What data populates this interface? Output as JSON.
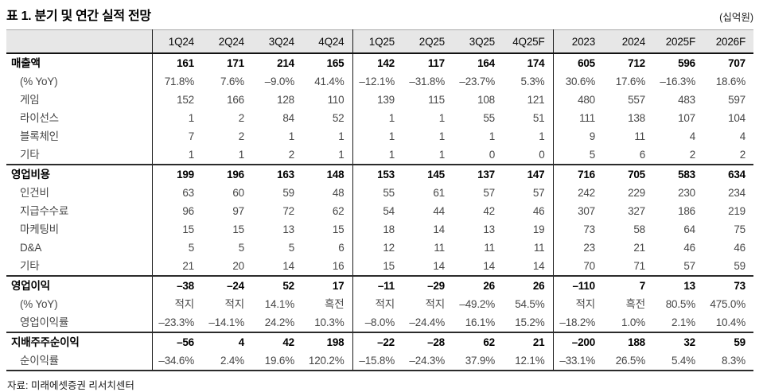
{
  "title": "표 1. 분기 및 연간 실적 전망",
  "unit_label": "(십억원)",
  "source": "자료: 미래에셋증권 리서치센터",
  "table": {
    "columns": [
      "1Q24",
      "2Q24",
      "3Q24",
      "4Q24",
      "1Q25",
      "2Q25",
      "3Q25",
      "4Q25F",
      "2023",
      "2024",
      "2025F",
      "2026F"
    ],
    "rows": [
      {
        "label": "매출액",
        "bold": true,
        "section": false,
        "values": [
          "161",
          "171",
          "214",
          "165",
          "142",
          "117",
          "164",
          "174",
          "605",
          "712",
          "596",
          "707"
        ]
      },
      {
        "label": "(% YoY)",
        "bold": false,
        "section": false,
        "values": [
          "71.8%",
          "7.6%",
          "–9.0%",
          "41.4%",
          "–12.1%",
          "–31.8%",
          "–23.7%",
          "5.3%",
          "30.6%",
          "17.6%",
          "–16.3%",
          "18.6%"
        ]
      },
      {
        "label": "게임",
        "bold": false,
        "section": false,
        "values": [
          "152",
          "166",
          "128",
          "110",
          "139",
          "115",
          "108",
          "121",
          "480",
          "557",
          "483",
          "597"
        ]
      },
      {
        "label": "라이선스",
        "bold": false,
        "section": false,
        "values": [
          "1",
          "2",
          "84",
          "52",
          "1",
          "1",
          "55",
          "51",
          "111",
          "138",
          "107",
          "104"
        ]
      },
      {
        "label": "블록체인",
        "bold": false,
        "section": false,
        "values": [
          "7",
          "2",
          "1",
          "1",
          "1",
          "1",
          "1",
          "1",
          "9",
          "11",
          "4",
          "4"
        ]
      },
      {
        "label": "기타",
        "bold": false,
        "section": false,
        "values": [
          "1",
          "1",
          "2",
          "1",
          "1",
          "1",
          "0",
          "0",
          "5",
          "6",
          "2",
          "2"
        ]
      },
      {
        "label": "영업비용",
        "bold": true,
        "section": true,
        "values": [
          "199",
          "196",
          "163",
          "148",
          "153",
          "145",
          "137",
          "147",
          "716",
          "705",
          "583",
          "634"
        ]
      },
      {
        "label": "인건비",
        "bold": false,
        "section": false,
        "values": [
          "63",
          "60",
          "59",
          "48",
          "55",
          "61",
          "57",
          "57",
          "242",
          "229",
          "230",
          "234"
        ]
      },
      {
        "label": "지급수수료",
        "bold": false,
        "section": false,
        "values": [
          "96",
          "97",
          "72",
          "62",
          "54",
          "44",
          "42",
          "46",
          "307",
          "327",
          "186",
          "219"
        ]
      },
      {
        "label": "마케팅비",
        "bold": false,
        "section": false,
        "values": [
          "15",
          "15",
          "13",
          "15",
          "18",
          "14",
          "13",
          "19",
          "73",
          "58",
          "64",
          "75"
        ]
      },
      {
        "label": "D&A",
        "bold": false,
        "section": false,
        "values": [
          "5",
          "5",
          "5",
          "6",
          "12",
          "11",
          "11",
          "11",
          "23",
          "21",
          "46",
          "46"
        ]
      },
      {
        "label": "기타",
        "bold": false,
        "section": false,
        "values": [
          "21",
          "20",
          "14",
          "16",
          "15",
          "14",
          "14",
          "14",
          "70",
          "71",
          "57",
          "59"
        ]
      },
      {
        "label": "영업이익",
        "bold": true,
        "section": true,
        "values": [
          "–38",
          "–24",
          "52",
          "17",
          "–11",
          "–29",
          "26",
          "26",
          "–110",
          "7",
          "13",
          "73"
        ]
      },
      {
        "label": "(% YoY)",
        "bold": false,
        "section": false,
        "values": [
          "적지",
          "적지",
          "14.1%",
          "흑전",
          "적지",
          "적지",
          "–49.2%",
          "54.5%",
          "적지",
          "흑전",
          "80.5%",
          "475.0%"
        ]
      },
      {
        "label": "영업이익률",
        "bold": false,
        "section": false,
        "values": [
          "–23.3%",
          "–14.1%",
          "24.2%",
          "10.3%",
          "–8.0%",
          "–24.4%",
          "16.1%",
          "15.2%",
          "–18.2%",
          "1.0%",
          "2.1%",
          "10.4%"
        ]
      },
      {
        "label": "지배주주순이익",
        "bold": true,
        "section": true,
        "values": [
          "–56",
          "4",
          "42",
          "198",
          "–22",
          "–28",
          "62",
          "21",
          "–200",
          "188",
          "32",
          "59"
        ]
      },
      {
        "label": "순이익률",
        "bold": false,
        "section": false,
        "values": [
          "–34.6%",
          "2.4%",
          "19.6%",
          "120.2%",
          "–15.8%",
          "–24.3%",
          "37.9%",
          "12.1%",
          "–33.1%",
          "26.5%",
          "5.4%",
          "8.3%"
        ]
      }
    ]
  }
}
